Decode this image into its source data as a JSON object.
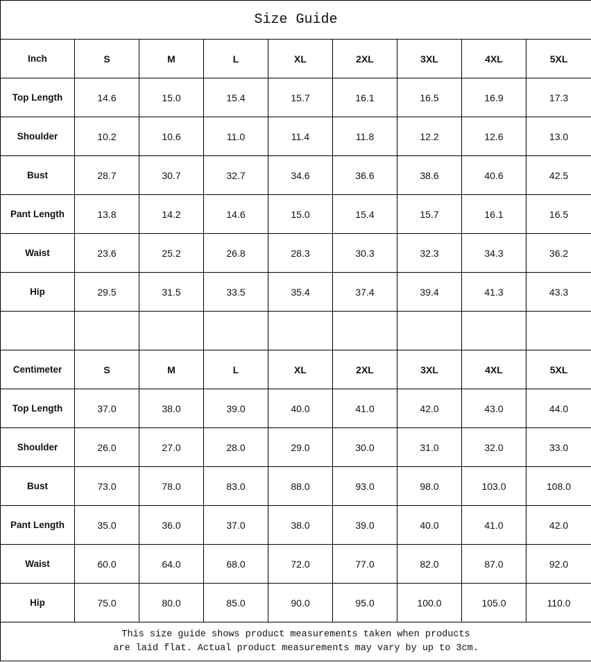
{
  "title": "Size Guide",
  "sizes": [
    "S",
    "M",
    "L",
    "XL",
    "2XL",
    "3XL",
    "4XL",
    "5XL"
  ],
  "inch": {
    "unit_label": "Inch",
    "rows": [
      {
        "label": "Top Length",
        "values": [
          "14.6",
          "15.0",
          "15.4",
          "15.7",
          "16.1",
          "16.5",
          "16.9",
          "17.3"
        ]
      },
      {
        "label": "Shoulder",
        "values": [
          "10.2",
          "10.6",
          "11.0",
          "11.4",
          "11.8",
          "12.2",
          "12.6",
          "13.0"
        ]
      },
      {
        "label": "Bust",
        "values": [
          "28.7",
          "30.7",
          "32.7",
          "34.6",
          "36.6",
          "38.6",
          "40.6",
          "42.5"
        ]
      },
      {
        "label": "Pant Length",
        "values": [
          "13.8",
          "14.2",
          "14.6",
          "15.0",
          "15.4",
          "15.7",
          "16.1",
          "16.5"
        ]
      },
      {
        "label": "Waist",
        "values": [
          "23.6",
          "25.2",
          "26.8",
          "28.3",
          "30.3",
          "32.3",
          "34.3",
          "36.2"
        ]
      },
      {
        "label": "Hip",
        "values": [
          "29.5",
          "31.5",
          "33.5",
          "35.4",
          "37.4",
          "39.4",
          "41.3",
          "43.3"
        ]
      }
    ]
  },
  "cm": {
    "unit_label": "Centimeter",
    "rows": [
      {
        "label": "Top Length",
        "values": [
          "37.0",
          "38.0",
          "39.0",
          "40.0",
          "41.0",
          "42.0",
          "43.0",
          "44.0"
        ]
      },
      {
        "label": "Shoulder",
        "values": [
          "26.0",
          "27.0",
          "28.0",
          "29.0",
          "30.0",
          "31.0",
          "32.0",
          "33.0"
        ]
      },
      {
        "label": "Bust",
        "values": [
          "73.0",
          "78.0",
          "83.0",
          "88.0",
          "93.0",
          "98.0",
          "103.0",
          "108.0"
        ]
      },
      {
        "label": "Pant Length",
        "values": [
          "35.0",
          "36.0",
          "37.0",
          "38.0",
          "39.0",
          "40.0",
          "41.0",
          "42.0"
        ]
      },
      {
        "label": "Waist",
        "values": [
          "60.0",
          "64.0",
          "68.0",
          "72.0",
          "77.0",
          "82.0",
          "87.0",
          "92.0"
        ]
      },
      {
        "label": "Hip",
        "values": [
          "75.0",
          "80.0",
          "85.0",
          "90.0",
          "95.0",
          "100.0",
          "105.0",
          "110.0"
        ]
      }
    ]
  },
  "note_line1": "This size guide shows product measurements taken when products",
  "note_line2": "are laid flat. Actual product measurements may vary by up to 3cm."
}
